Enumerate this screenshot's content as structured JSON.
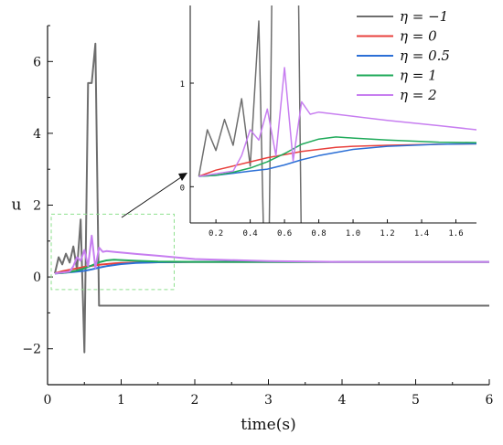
{
  "chart_data": {
    "type": "line",
    "xlabel": "time(s)",
    "ylabel": "u",
    "xlim": [
      0,
      6
    ],
    "ylim": [
      -3,
      7
    ],
    "x_ticks": [
      "0",
      "1",
      "2",
      "3",
      "4",
      "5",
      "6"
    ],
    "y_ticks": [
      "−2",
      "0",
      "2",
      "4",
      "6"
    ],
    "legend": {
      "position": "top-right",
      "entries": [
        "η = −1",
        "η = 0",
        "η = 0.5",
        "η = 1",
        "η = 2"
      ]
    },
    "series": [
      {
        "name": "η = −1",
        "color": "#6e6e6e",
        "x": [
          0.1,
          0.15,
          0.2,
          0.25,
          0.3,
          0.35,
          0.4,
          0.45,
          0.5,
          0.55,
          0.6,
          0.65,
          0.7,
          1.0,
          2.0,
          3.0,
          4.0,
          5.0,
          6.0
        ],
        "y": [
          0.1,
          0.55,
          0.35,
          0.65,
          0.4,
          0.85,
          0.2,
          1.6,
          -2.1,
          5.4,
          5.4,
          6.5,
          -0.8,
          -0.8,
          -0.8,
          -0.8,
          -0.8,
          -0.8,
          -0.8
        ]
      },
      {
        "name": "η = 0",
        "color": "#e8403c",
        "x": [
          0.1,
          0.2,
          0.3,
          0.4,
          0.5,
          0.6,
          0.7,
          0.8,
          0.9,
          1.0,
          1.2,
          1.5,
          2.0,
          3.0,
          4.0,
          5.0,
          6.0
        ],
        "y": [
          0.1,
          0.16,
          0.2,
          0.24,
          0.28,
          0.31,
          0.34,
          0.36,
          0.38,
          0.39,
          0.4,
          0.41,
          0.42,
          0.42,
          0.42,
          0.42,
          0.42
        ]
      },
      {
        "name": "η = 0.5",
        "color": "#2b6fd6",
        "x": [
          0.1,
          0.2,
          0.3,
          0.4,
          0.5,
          0.6,
          0.7,
          0.8,
          0.9,
          1.0,
          1.2,
          1.5,
          2.0,
          3.0,
          4.0,
          5.0,
          6.0
        ],
        "y": [
          0.1,
          0.11,
          0.13,
          0.15,
          0.17,
          0.21,
          0.26,
          0.3,
          0.33,
          0.36,
          0.39,
          0.41,
          0.42,
          0.42,
          0.42,
          0.42,
          0.42
        ]
      },
      {
        "name": "η = 1",
        "color": "#1faa5a",
        "x": [
          0.1,
          0.2,
          0.3,
          0.4,
          0.5,
          0.6,
          0.7,
          0.8,
          0.9,
          1.0,
          1.2,
          1.5,
          2.0,
          3.0,
          4.0,
          5.0,
          6.0
        ],
        "y": [
          0.1,
          0.11,
          0.14,
          0.18,
          0.24,
          0.32,
          0.41,
          0.46,
          0.48,
          0.47,
          0.45,
          0.43,
          0.42,
          0.42,
          0.42,
          0.42,
          0.42
        ]
      },
      {
        "name": "η = 2",
        "color": "#c77ef0",
        "x": [
          0.1,
          0.3,
          0.35,
          0.4,
          0.45,
          0.5,
          0.55,
          0.6,
          0.65,
          0.7,
          0.75,
          0.8,
          1.0,
          1.2,
          1.5,
          1.72,
          2.0,
          3.0,
          4.0,
          5.0,
          6.0
        ],
        "y": [
          0.1,
          0.15,
          0.3,
          0.55,
          0.45,
          0.75,
          0.3,
          1.15,
          0.25,
          0.82,
          0.7,
          0.72,
          0.68,
          0.64,
          0.59,
          0.55,
          0.5,
          0.44,
          0.42,
          0.42,
          0.42
        ]
      }
    ],
    "inset": {
      "xlim": [
        0.05,
        1.72
      ],
      "ylim": [
        -0.35,
        1.75
      ],
      "x_ticks": [
        "0.2",
        "0.4",
        "0.6",
        "0.8",
        "1.0",
        "1.2",
        "1.4",
        "1.6"
      ],
      "y_ticks": [
        "0",
        "1"
      ]
    }
  }
}
